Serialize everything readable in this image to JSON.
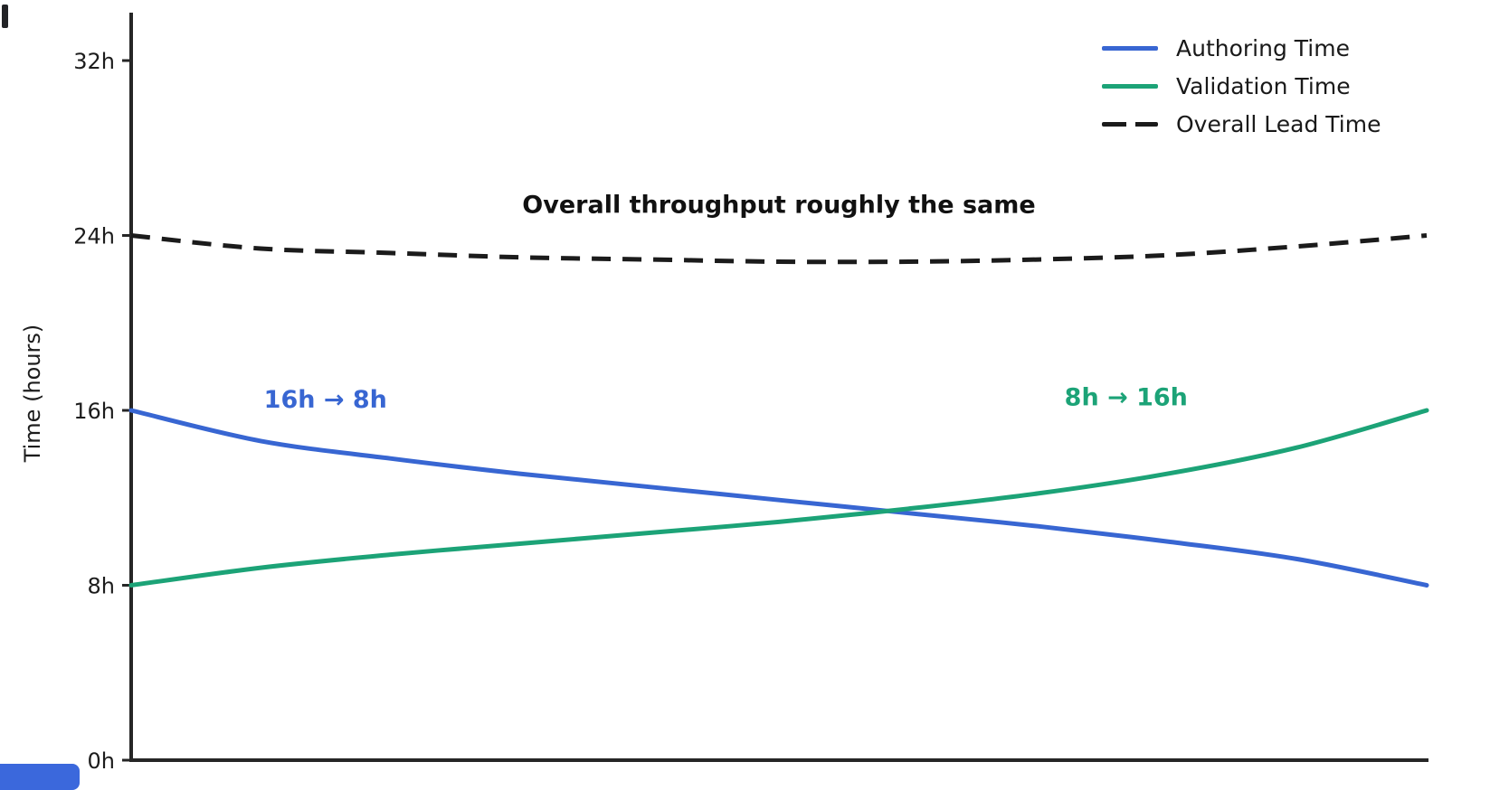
{
  "chart_data": {
    "type": "line",
    "title": "",
    "xlabel": "",
    "ylabel": "Time (hours)",
    "ylim": [
      0,
      32
    ],
    "grid": false,
    "legend_position": "top-right",
    "yticks": [
      {
        "value": 0,
        "label": "0h"
      },
      {
        "value": 8,
        "label": "8h"
      },
      {
        "value": 16,
        "label": "16h"
      },
      {
        "value": 24,
        "label": "24h"
      },
      {
        "value": 32,
        "label": "32h"
      }
    ],
    "x_axis": {
      "range": [
        0,
        1
      ],
      "tick_labels_visible": false
    },
    "x": [
      0,
      0.1,
      0.2,
      0.3,
      0.4,
      0.5,
      0.6,
      0.7,
      0.8,
      0.9,
      1
    ],
    "series": [
      {
        "name": "Authoring Time",
        "style": "solid",
        "color": "#3866d2",
        "start_value_hours": 16,
        "end_value_hours": 8,
        "values": [
          16,
          14.6,
          13.8,
          13.1,
          12.5,
          11.9,
          11.3,
          10.7,
          10,
          9.2,
          8
        ]
      },
      {
        "name": "Validation Time",
        "style": "solid",
        "color": "#1ca377",
        "start_value_hours": 8,
        "end_value_hours": 16,
        "values": [
          8,
          8.8,
          9.4,
          9.9,
          10.4,
          10.9,
          11.5,
          12.2,
          13.1,
          14.3,
          16
        ]
      },
      {
        "name": "Overall Lead Time",
        "style": "dashed",
        "color": "#1b1b1b",
        "start_value_hours": 24,
        "end_value_hours": 24,
        "values": [
          24,
          23.4,
          23.2,
          23,
          22.9,
          22.8,
          22.8,
          22.9,
          23.1,
          23.5,
          24
        ]
      }
    ],
    "annotations": [
      {
        "text": "Overall throughput roughly the same",
        "x": 0.5,
        "y": 25.4,
        "color": "#111111"
      },
      {
        "text": "16h → 8h",
        "x": 0.15,
        "y": 16.5,
        "color": "#3866d2"
      },
      {
        "text": "8h → 16h",
        "x": 0.768,
        "y": 16.6,
        "color": "#1ca377"
      }
    ]
  },
  "artifacts": {
    "top_left_mark_color": "#222326",
    "bottom_left_bar_color": "#3b68dc"
  }
}
